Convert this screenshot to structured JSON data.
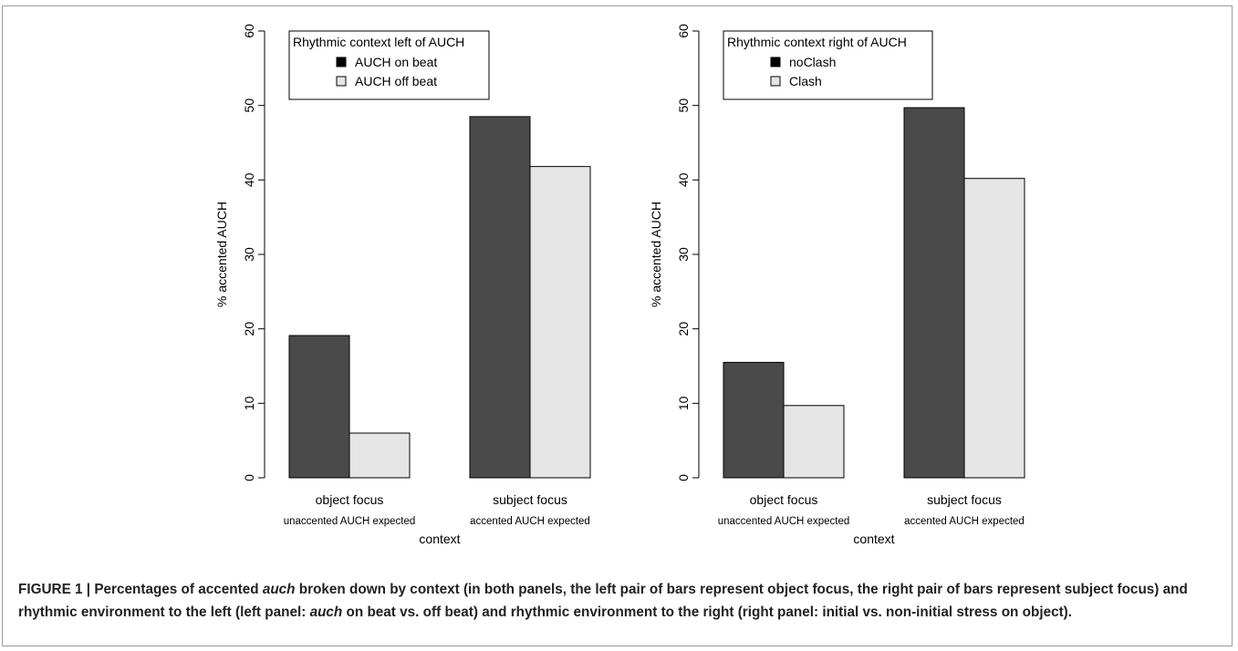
{
  "chart_data": [
    {
      "type": "bar",
      "title": "",
      "xlabel": "context",
      "ylabel": "% accented AUCH",
      "ylim": [
        0,
        60
      ],
      "yticks": [
        0,
        10,
        20,
        30,
        40,
        50,
        60
      ],
      "grid": false,
      "legend_position": "top-left",
      "legend_title": "Rhythmic context left of AUCH",
      "categories": [
        "object focus",
        "subject focus"
      ],
      "category_sublabels": [
        "unaccented AUCH expected",
        "accented AUCH expected"
      ],
      "series": [
        {
          "name": "AUCH on beat",
          "values": [
            19.1,
            48.5
          ],
          "color": "#4a4a4a"
        },
        {
          "name": "AUCH off beat",
          "values": [
            6.0,
            41.8
          ],
          "color": "#e5e5e5"
        }
      ]
    },
    {
      "type": "bar",
      "title": "",
      "xlabel": "context",
      "ylabel": "% accented AUCH",
      "ylim": [
        0,
        60
      ],
      "yticks": [
        0,
        10,
        20,
        30,
        40,
        50,
        60
      ],
      "grid": false,
      "legend_position": "top-left",
      "legend_title": "Rhythmic context right of AUCH",
      "categories": [
        "object focus",
        "subject focus"
      ],
      "category_sublabels": [
        "unaccented AUCH expected",
        "accented AUCH expected"
      ],
      "series": [
        {
          "name": "noClash",
          "values": [
            15.5,
            49.7
          ],
          "color": "#4a4a4a"
        },
        {
          "name": "Clash",
          "values": [
            9.7,
            40.2
          ],
          "color": "#e5e5e5"
        }
      ]
    }
  ],
  "caption": {
    "part1": "FIGURE 1 | Percentages of accented ",
    "italic1": "auch",
    "part2": " broken down by context (in both panels, the left pair of bars represent object focus, the right pair of bars represent subject focus) and rhythmic environment to the left (left panel: ",
    "italic2": "auch",
    "part3": " on beat vs. off beat) and rhythmic environment to the right (right panel: initial vs. non-initial stress on object)."
  }
}
